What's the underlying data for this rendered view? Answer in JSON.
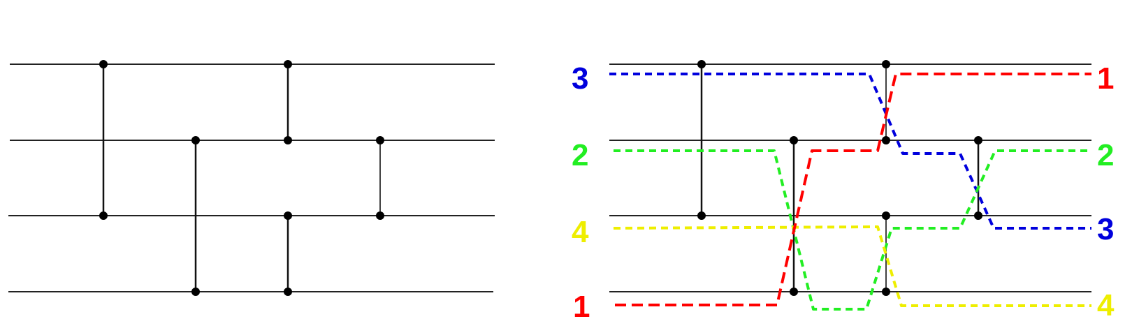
{
  "colors": {
    "red": "#ff0000",
    "green": "#22ee22",
    "blue": "#0000dd",
    "yellow": "#eeee00",
    "wire": "#222222"
  },
  "left_network": {
    "wires": 4,
    "comparators": [
      {
        "from": 1,
        "to": 3
      },
      {
        "from": 2,
        "to": 4
      },
      {
        "from": 1,
        "to": 2
      },
      {
        "from": 3,
        "to": 4
      },
      {
        "from": 2,
        "to": 3
      }
    ]
  },
  "right_network": {
    "wires": 4,
    "comparators": [
      {
        "from": 1,
        "to": 3
      },
      {
        "from": 2,
        "to": 4
      },
      {
        "from": 1,
        "to": 2
      },
      {
        "from": 3,
        "to": 4
      },
      {
        "from": 2,
        "to": 3
      }
    ],
    "inputs": [
      "3",
      "2",
      "4",
      "1"
    ],
    "outputs": [
      "1",
      "2",
      "3",
      "4"
    ],
    "input_colors": [
      "blue",
      "green",
      "yellow",
      "red"
    ],
    "output_colors": [
      "red",
      "green",
      "blue",
      "yellow"
    ]
  }
}
